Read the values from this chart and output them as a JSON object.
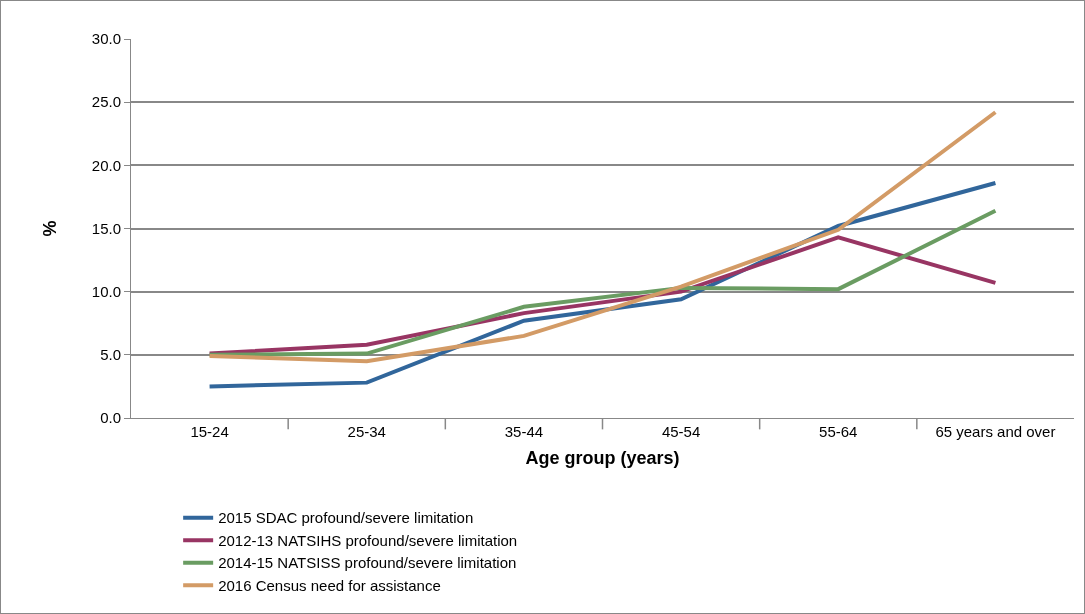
{
  "chart_data": {
    "type": "line",
    "xlabel": "Age group (years)",
    "ylabel": "%",
    "categories": [
      "15-24",
      "25-34",
      "35-44",
      "45-54",
      "55-64",
      "65 years and over"
    ],
    "series": [
      {
        "name": "2015 SDAC profound/severe limitation",
        "color": "#31669b",
        "values": [
          2.5,
          2.8,
          7.7,
          9.4,
          15.2,
          18.6
        ]
      },
      {
        "name": "2012-13 NATSIHS profound/severe limitation",
        "color": "#983563",
        "values": [
          5.1,
          5.8,
          8.3,
          10.0,
          14.3,
          10.7
        ]
      },
      {
        "name": "2014-15 NATSISS profound/severe limitation",
        "color": "#6a9c62",
        "values": [
          5.0,
          5.1,
          8.8,
          10.3,
          10.2,
          16.4
        ]
      },
      {
        "name": "2016 Census need for assistance",
        "color": "#d39b66",
        "values": [
          4.9,
          4.5,
          6.5,
          10.4,
          14.9,
          24.2
        ]
      }
    ],
    "ylim": [
      0,
      30
    ],
    "yticks": [
      {
        "value": 0,
        "label": "0.0"
      },
      {
        "value": 5,
        "label": "5.0"
      },
      {
        "value": 10,
        "label": "10.0"
      },
      {
        "value": 15,
        "label": "15.0"
      },
      {
        "value": 20,
        "label": "20.0"
      },
      {
        "value": 25,
        "label": "25.0"
      },
      {
        "value": 30,
        "label": "30.0"
      }
    ],
    "grid": "y",
    "legend": "bottom",
    "marker": "none",
    "line_style": "solid"
  }
}
